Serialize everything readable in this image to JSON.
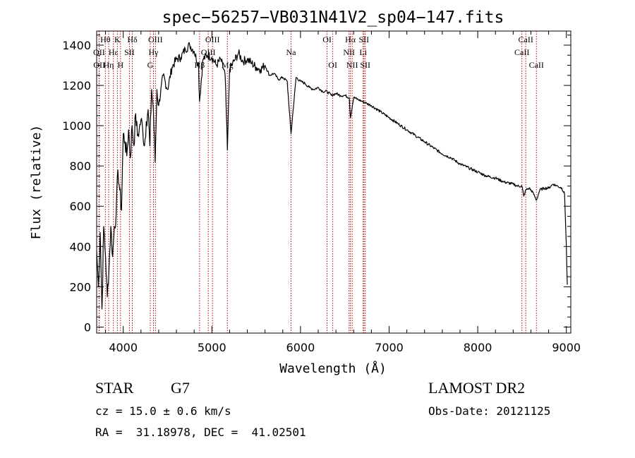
{
  "chart_data": {
    "type": "line",
    "title": "spec−56257−VB031N41V2_sp04−147.fits",
    "xlabel": "Wavelength (Å)",
    "ylabel": "Flux (relative)",
    "xlim": [
      3700,
      9050
    ],
    "ylim": [
      -30,
      1470
    ],
    "x_ticks": [
      4000,
      5000,
      6000,
      7000,
      8000,
      9000
    ],
    "y_ticks": [
      0,
      200,
      400,
      600,
      800,
      1000,
      1200,
      1400
    ],
    "line_color": "#000000",
    "marker_color": "#b00000",
    "series": [
      {
        "x": [
          3700,
          3720,
          3740,
          3760,
          3780,
          3800,
          3820,
          3840,
          3860,
          3880,
          3900,
          3920,
          3940,
          3960,
          3980,
          4000,
          4020,
          4040,
          4060,
          4080,
          4100,
          4120,
          4140,
          4160,
          4180,
          4200,
          4220,
          4240,
          4260,
          4280,
          4300,
          4320,
          4340,
          4360,
          4380,
          4400,
          4450,
          4500,
          4550,
          4600,
          4650,
          4700,
          4750,
          4800,
          4850,
          4861,
          4900,
          4950,
          5000,
          5050,
          5100,
          5150,
          5175,
          5200,
          5250,
          5300,
          5350,
          5400,
          5450,
          5500,
          5550,
          5600,
          5650,
          5700,
          5750,
          5800,
          5850,
          5893,
          5950,
          6000,
          6050,
          6100,
          6150,
          6200,
          6250,
          6300,
          6350,
          6400,
          6450,
          6500,
          6550,
          6563,
          6600,
          6650,
          6700,
          6750,
          6800,
          6900,
          7000,
          7100,
          7200,
          7300,
          7400,
          7500,
          7600,
          7700,
          7800,
          7900,
          8000,
          8100,
          8200,
          8300,
          8400,
          8450,
          8498,
          8520,
          8542,
          8580,
          8620,
          8662,
          8700,
          8750,
          8800,
          8850,
          8900,
          8950,
          8980,
          9000,
          9010
        ],
        "y": [
          380,
          200,
          470,
          90,
          500,
          350,
          150,
          300,
          500,
          350,
          500,
          560,
          780,
          680,
          580,
          960,
          920,
          850,
          980,
          840,
          1000,
          900,
          1060,
          950,
          980,
          1030,
          980,
          900,
          1020,
          1080,
          900,
          1180,
          1080,
          820,
          1180,
          1100,
          1250,
          1180,
          1290,
          1330,
          1340,
          1380,
          1400,
          1370,
          1300,
          1120,
          1330,
          1350,
          1340,
          1300,
          1330,
          1250,
          880,
          1280,
          1320,
          1360,
          1320,
          1330,
          1310,
          1290,
          1280,
          1300,
          1250,
          1260,
          1230,
          1240,
          1220,
          960,
          1240,
          1220,
          1210,
          1190,
          1180,
          1190,
          1170,
          1170,
          1150,
          1160,
          1150,
          1150,
          1140,
          1040,
          1140,
          1130,
          1120,
          1110,
          1100,
          1070,
          1040,
          1010,
          980,
          950,
          920,
          890,
          860,
          840,
          810,
          790,
          770,
          750,
          740,
          720,
          710,
          700,
          700,
          650,
          680,
          690,
          670,
          630,
          680,
          690,
          690,
          710,
          700,
          690,
          660,
          400,
          210
        ]
      }
    ],
    "lines": [
      {
        "label": "Hθ",
        "wl": 3798,
        "row": 0
      },
      {
        "label": "OII",
        "wl": 3727,
        "row": 1
      },
      {
        "label": "OII",
        "wl": 3729,
        "row": 2
      },
      {
        "label": "Hη",
        "wl": 3835,
        "row": 2
      },
      {
        "label": "K",
        "wl": 3934,
        "row": 0
      },
      {
        "label": "Hε",
        "wl": 3889,
        "row": 1
      },
      {
        "label": "H",
        "wl": 3969,
        "row": 2
      },
      {
        "label": "SII",
        "wl": 4070,
        "row": 1
      },
      {
        "label": "Hδ",
        "wl": 4102,
        "row": 0
      },
      {
        "label": "OIII",
        "wl": 4363,
        "row": 0
      },
      {
        "label": "Hγ",
        "wl": 4341,
        "row": 1
      },
      {
        "label": "G",
        "wl": 4305,
        "row": 2
      },
      {
        "label": "Hβ",
        "wl": 4861,
        "row": 2
      },
      {
        "label": "OIII",
        "wl": 5007,
        "row": 0
      },
      {
        "label": "OIII",
        "wl": 4959,
        "row": 1
      },
      {
        "label": "Mg",
        "wl": 5175,
        "row": 2
      },
      {
        "label": "Na",
        "wl": 5893,
        "row": 1
      },
      {
        "label": "OI",
        "wl": 6300,
        "row": 0
      },
      {
        "label": "OI",
        "wl": 6364,
        "row": 2
      },
      {
        "label": "Hα",
        "wl": 6563,
        "row": 0
      },
      {
        "label": "NII",
        "wl": 6548,
        "row": 1
      },
      {
        "label": "NII",
        "wl": 6583,
        "row": 2
      },
      {
        "label": "SII",
        "wl": 6716,
        "row": 0
      },
      {
        "label": "Li",
        "wl": 6707,
        "row": 1
      },
      {
        "label": "SII",
        "wl": 6731,
        "row": 2
      },
      {
        "label": "CaII",
        "wl": 8542,
        "row": 0
      },
      {
        "label": "CaII",
        "wl": 8498,
        "row": 1
      },
      {
        "label": "CaII",
        "wl": 8662,
        "row": 2
      }
    ]
  },
  "info": {
    "object_class": "STAR",
    "subclass": "G7",
    "redshift_line": "cz = 15.0 ± 0.6 km/s",
    "coords_line": "RA =  31.18978, DEC =  41.02501",
    "survey": "LAMOST DR2",
    "obs_date": "Obs-Date: 20121125"
  }
}
